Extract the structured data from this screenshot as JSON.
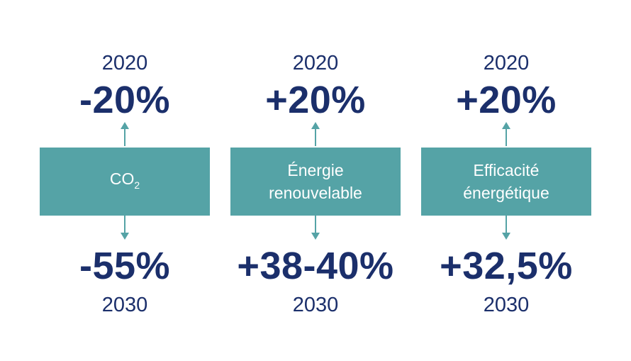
{
  "columns": [
    {
      "top_year": "2020",
      "top_value": "-20%",
      "label_main": "CO",
      "label_sub": "2",
      "bottom_value": "-55%",
      "bottom_year": "2030"
    },
    {
      "top_year": "2020",
      "top_value": "+20%",
      "label_line1": "Énergie",
      "label_line2": "renouvelable",
      "bottom_value": "+38-40%",
      "bottom_year": "2030"
    },
    {
      "top_year": "2020",
      "top_value": "+20%",
      "label_line1": "Efficacité",
      "label_line2": "énergétique",
      "bottom_value": "+32,5%",
      "bottom_year": "2030"
    }
  ],
  "colors": {
    "accent": "#55a3a6",
    "text": "#1b2f6b",
    "arrow": "#55a3a6"
  }
}
